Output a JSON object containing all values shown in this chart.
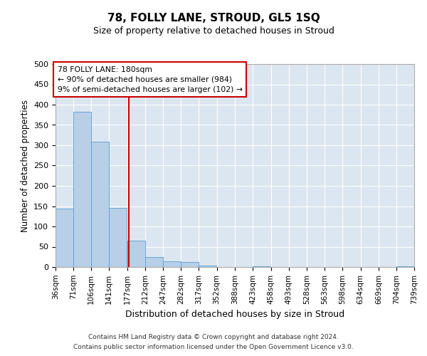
{
  "title": "78, FOLLY LANE, STROUD, GL5 1SQ",
  "subtitle": "Size of property relative to detached houses in Stroud",
  "xlabel": "Distribution of detached houses by size in Stroud",
  "ylabel": "Number of detached properties",
  "footnote1": "Contains HM Land Registry data © Crown copyright and database right 2024.",
  "footnote2": "Contains public sector information licensed under the Open Government Licence v3.0.",
  "annotation_line1": "78 FOLLY LANE: 180sqm",
  "annotation_line2": "← 90% of detached houses are smaller (984)",
  "annotation_line3": "9% of semi-detached houses are larger (102) →",
  "bar_color": "#b8cfe8",
  "bar_edge_color": "#5a9fd4",
  "vline_color": "#cc0000",
  "bg_color": "#dce6f0",
  "fig_bg_color": "#ffffff",
  "annotation_box_color": "#ffffff",
  "annotation_box_edge": "#cc0000",
  "bins": [
    36,
    71,
    106,
    141,
    177,
    212,
    247,
    282,
    317,
    352,
    388,
    423,
    458,
    493,
    528,
    563,
    598,
    634,
    669,
    704,
    739
  ],
  "counts": [
    143,
    383,
    309,
    145,
    65,
    25,
    14,
    13,
    3,
    0,
    0,
    1,
    0,
    0,
    0,
    0,
    0,
    0,
    0,
    1
  ],
  "vline_x": 180,
  "ylim": [
    0,
    500
  ],
  "yticks": [
    0,
    50,
    100,
    150,
    200,
    250,
    300,
    350,
    400,
    450,
    500
  ]
}
